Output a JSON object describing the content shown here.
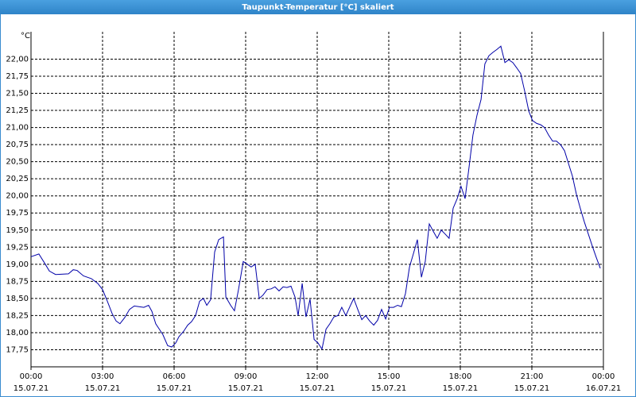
{
  "chart_data": {
    "type": "line",
    "title": "Taupunkt-Temperatur [°C] skaliert",
    "y_label": "°C",
    "grid": true,
    "xlim": [
      0,
      24
    ],
    "xticks": [
      {
        "value": 0,
        "label": "00:00",
        "date": "15.07.21"
      },
      {
        "value": 3,
        "label": "03:00",
        "date": "15.07.21"
      },
      {
        "value": 6,
        "label": "06:00",
        "date": "15.07.21"
      },
      {
        "value": 9,
        "label": "09:00",
        "date": "15.07.21"
      },
      {
        "value": 12,
        "label": "12:00",
        "date": "15.07.21"
      },
      {
        "value": 15,
        "label": "15:00",
        "date": "15.07.21"
      },
      {
        "value": 18,
        "label": "18:00",
        "date": "15.07.21"
      },
      {
        "value": 21,
        "label": "21:00",
        "date": "15.07.21"
      },
      {
        "value": 24,
        "label": "00:00",
        "date": "16.07.21"
      }
    ],
    "ylim": [
      17.5,
      22.4
    ],
    "yticks": [
      {
        "value": 17.75,
        "label": "17,75"
      },
      {
        "value": 18,
        "label": "18,00"
      },
      {
        "value": 18.25,
        "label": "18,25"
      },
      {
        "value": 18.5,
        "label": "18,50"
      },
      {
        "value": 18.75,
        "label": "18,75"
      },
      {
        "value": 19,
        "label": "19,00"
      },
      {
        "value": 19.25,
        "label": "19,25"
      },
      {
        "value": 19.5,
        "label": "19,50"
      },
      {
        "value": 19.75,
        "label": "19,75"
      },
      {
        "value": 20,
        "label": "20,00"
      },
      {
        "value": 20.25,
        "label": "20,25"
      },
      {
        "value": 20.5,
        "label": "20,50"
      },
      {
        "value": 20.75,
        "label": "20,75"
      },
      {
        "value": 21,
        "label": "21,00"
      },
      {
        "value": 21.25,
        "label": "21,25"
      },
      {
        "value": 21.5,
        "label": "21,50"
      },
      {
        "value": 21.75,
        "label": "21,75"
      },
      {
        "value": 22,
        "label": "22,00"
      }
    ],
    "series": [
      {
        "color": "#0000a8",
        "x": [
          0,
          0.33,
          0.6,
          0.77,
          1.03,
          1.57,
          1.77,
          1.93,
          2.2,
          2.53,
          2.8,
          3,
          3.2,
          3.4,
          3.57,
          3.73,
          3.93,
          4.13,
          4.33,
          4.53,
          4.73,
          4.93,
          5.07,
          5.23,
          5.4,
          5.53,
          5.73,
          5.9,
          6.07,
          6.2,
          6.4,
          6.57,
          6.73,
          6.9,
          7.07,
          7.23,
          7.37,
          7.53,
          7.7,
          7.87,
          8.07,
          8.17,
          8.37,
          8.53,
          8.7,
          8.9,
          9.07,
          9.23,
          9.4,
          9.57,
          9.73,
          9.9,
          10.07,
          10.23,
          10.4,
          10.57,
          10.73,
          10.9,
          11.07,
          11.2,
          11.37,
          11.53,
          11.7,
          11.87,
          12.03,
          12.2,
          12.37,
          12.53,
          12.7,
          12.87,
          13.03,
          13.2,
          13.37,
          13.53,
          13.7,
          13.87,
          14.03,
          14.2,
          14.37,
          14.53,
          14.7,
          14.87,
          15.03,
          15.2,
          15.37,
          15.53,
          15.7,
          15.87,
          16.03,
          16.2,
          16.37,
          16.53,
          16.7,
          16.87,
          17.03,
          17.2,
          17.37,
          17.53,
          17.7,
          17.87,
          18.03,
          18.2,
          18.37,
          18.53,
          18.7,
          18.87,
          19.03,
          19.2,
          19.37,
          19.53,
          19.7,
          19.87,
          20.03,
          20.2,
          20.37,
          20.53,
          20.7,
          20.87,
          21.03,
          21.2,
          21.37,
          21.53,
          21.7,
          21.87,
          22.03,
          22.2,
          22.37,
          22.53,
          22.7,
          22.87,
          23.03,
          23.2,
          23.37,
          23.53,
          23.7,
          23.87
        ],
        "values": [
          19.11,
          19.15,
          19.0,
          18.9,
          18.85,
          18.86,
          18.92,
          18.91,
          18.83,
          18.79,
          18.72,
          18.63,
          18.46,
          18.28,
          18.17,
          18.13,
          18.22,
          18.34,
          18.39,
          18.38,
          18.37,
          18.4,
          18.31,
          18.13,
          18.04,
          17.97,
          17.81,
          17.79,
          17.85,
          17.94,
          18.02,
          18.11,
          18.16,
          18.25,
          18.46,
          18.5,
          18.4,
          18.48,
          19.18,
          19.36,
          19.4,
          18.52,
          18.4,
          18.32,
          18.63,
          19.04,
          19.0,
          18.96,
          19.0,
          18.5,
          18.55,
          18.63,
          18.64,
          18.67,
          18.61,
          18.67,
          18.66,
          18.68,
          18.52,
          18.25,
          18.72,
          18.23,
          18.49,
          17.9,
          17.85,
          17.76,
          18.05,
          18.13,
          18.23,
          18.25,
          18.37,
          18.25,
          18.38,
          18.5,
          18.34,
          18.19,
          18.25,
          18.17,
          18.11,
          18.18,
          18.34,
          18.2,
          18.37,
          18.37,
          18.4,
          18.38,
          18.57,
          18.96,
          19.15,
          19.36,
          18.81,
          19.04,
          19.59,
          19.48,
          19.38,
          19.5,
          19.44,
          19.38,
          19.82,
          19.96,
          20.14,
          19.96,
          20.43,
          20.89,
          21.18,
          21.41,
          21.93,
          22.05,
          22.1,
          22.14,
          22.19,
          21.95,
          21.99,
          21.95,
          21.87,
          21.79,
          21.53,
          21.24,
          21.1,
          21.06,
          21.04,
          21.0,
          20.89,
          20.8,
          20.8,
          20.75,
          20.66,
          20.48,
          20.29,
          20.02,
          19.82,
          19.62,
          19.44,
          19.27,
          19.1,
          18.94
        ]
      }
    ]
  }
}
